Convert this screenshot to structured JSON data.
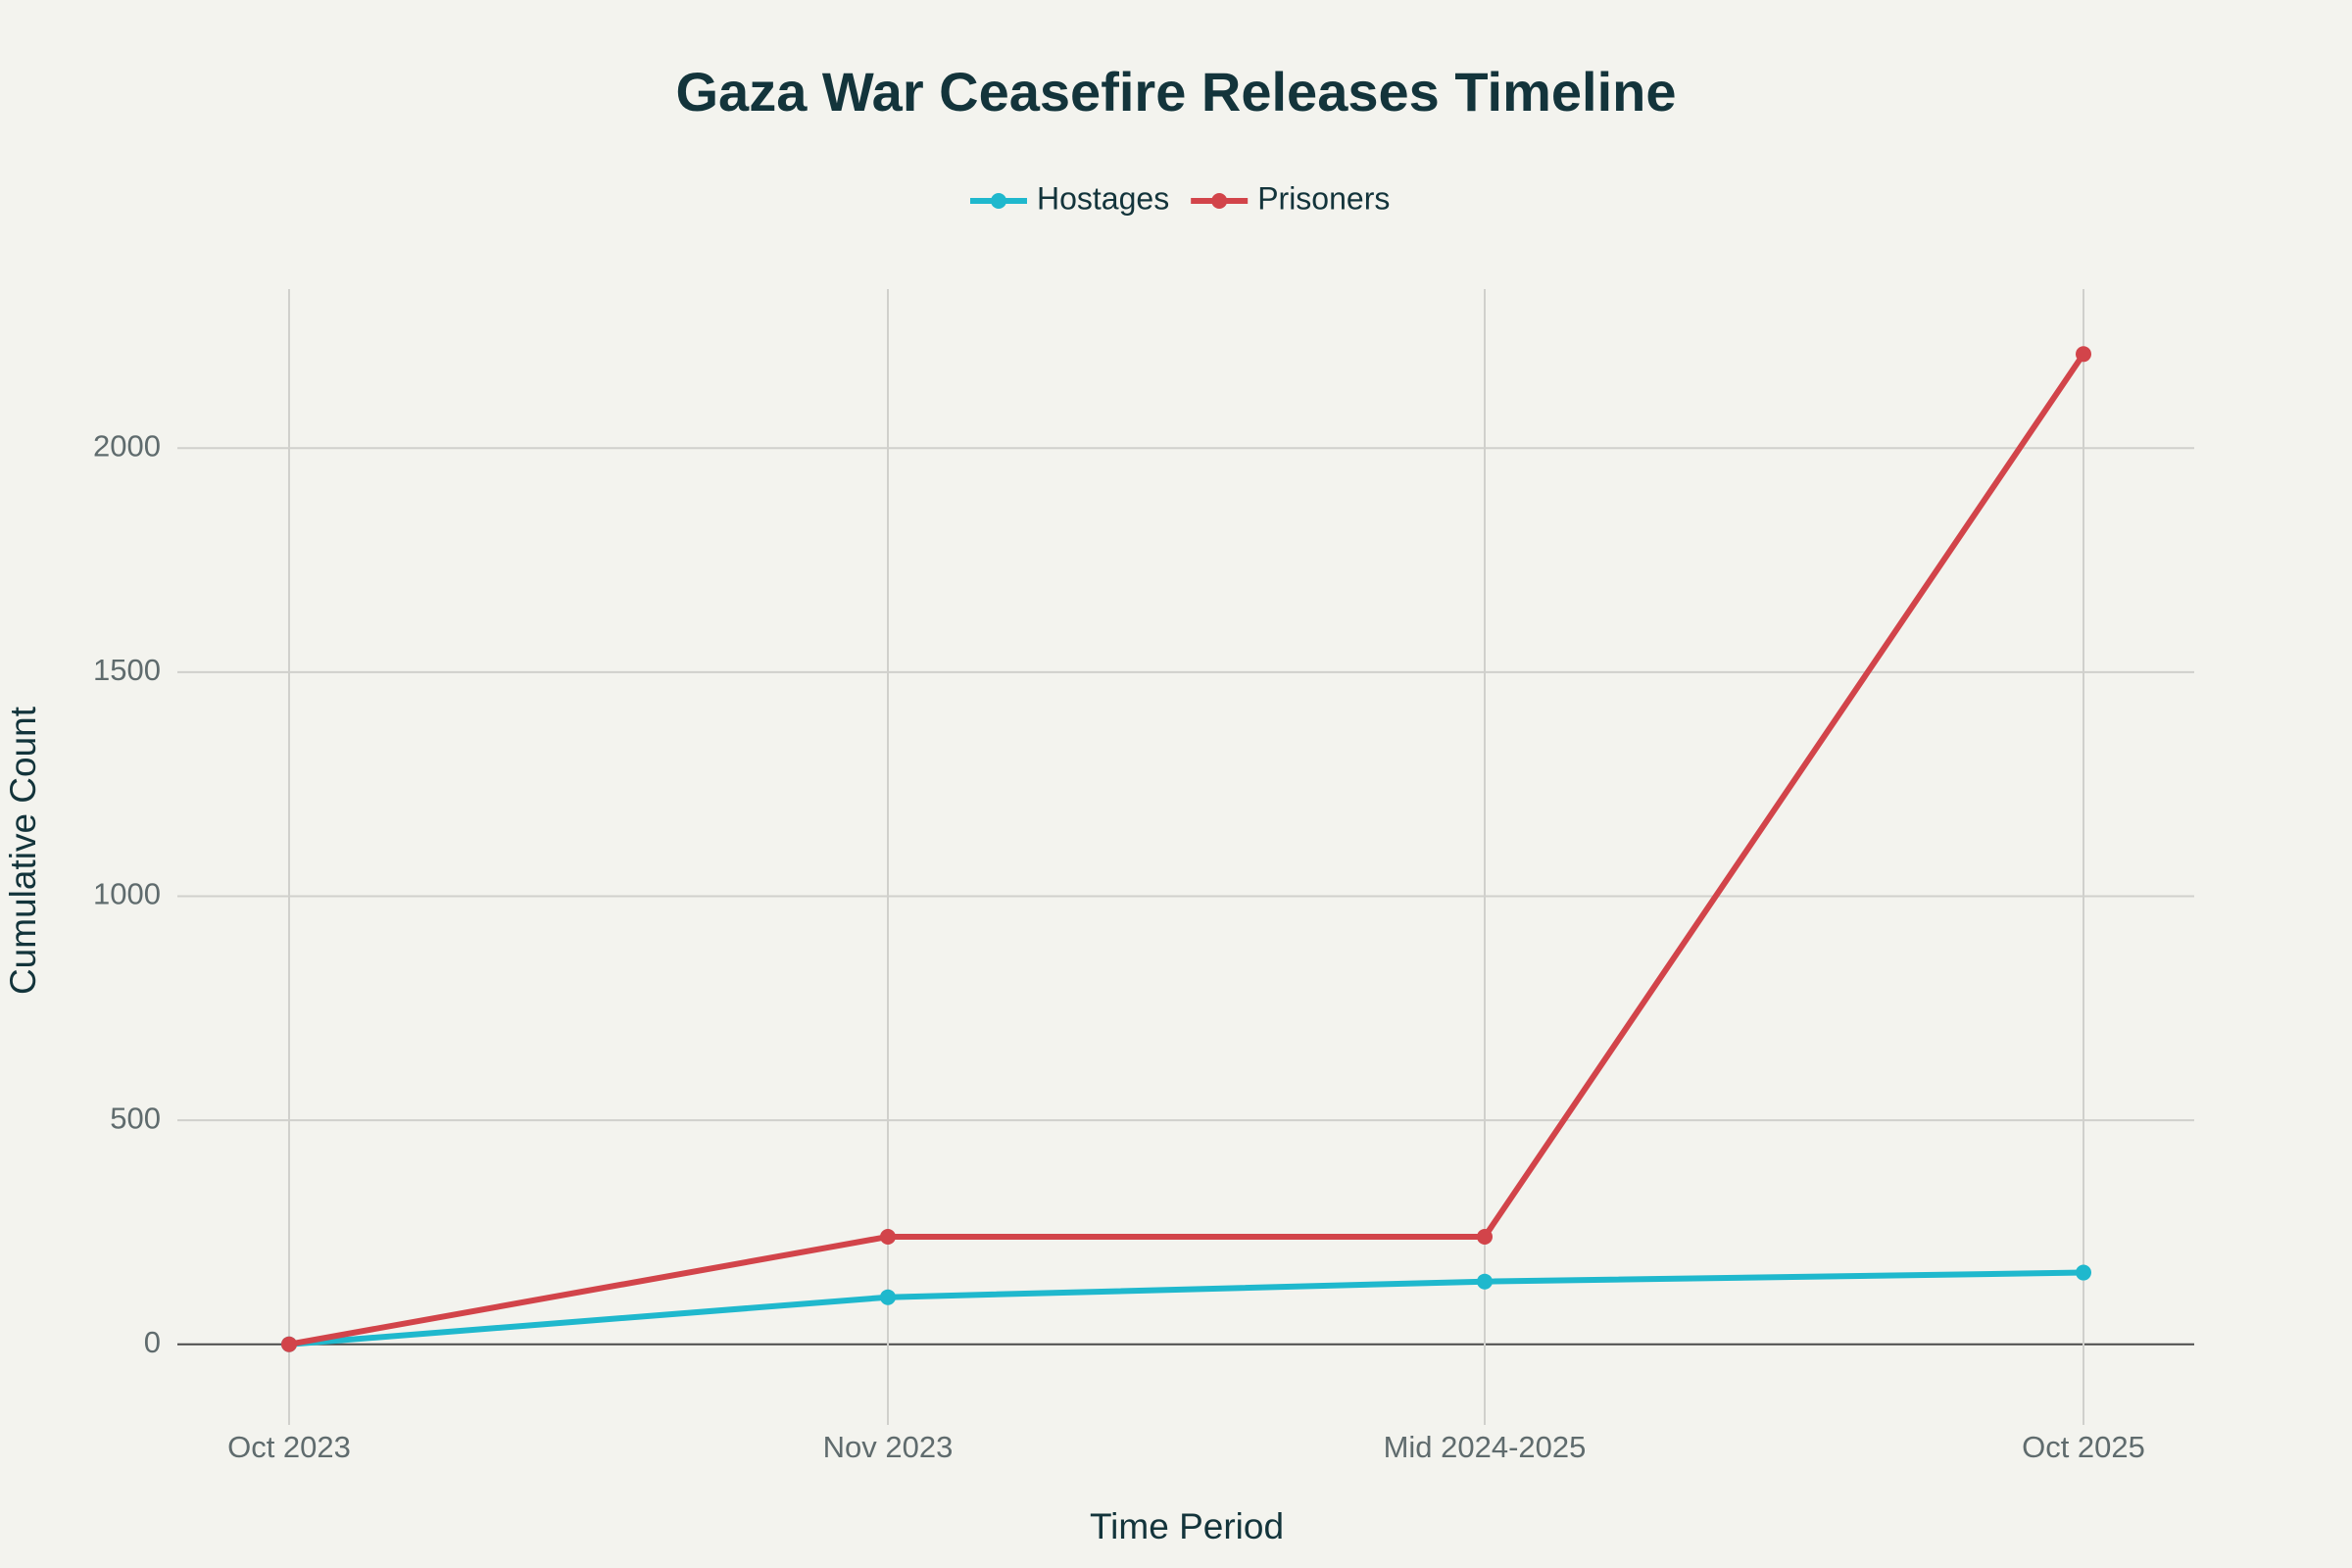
{
  "chart_data": {
    "type": "line",
    "title": "Gaza War Ceasefire Releases Timeline",
    "x_label": "Time Period",
    "y_label": "Cumulative Count",
    "categories": [
      "Oct 2023",
      "Nov 2023",
      "Mid 2024-2025",
      "Oct 2025"
    ],
    "series": [
      {
        "name": "Hostages",
        "color": "#1fb8cd",
        "values": [
          0,
          105,
          140,
          160
        ]
      },
      {
        "name": "Prisoners",
        "color": "#d2444a",
        "values": [
          0,
          240,
          240,
          2210
        ]
      }
    ],
    "ylim": [
      -180,
      2355
    ],
    "yticks": [
      0,
      500,
      1000,
      1500,
      2000
    ],
    "grid": true
  }
}
